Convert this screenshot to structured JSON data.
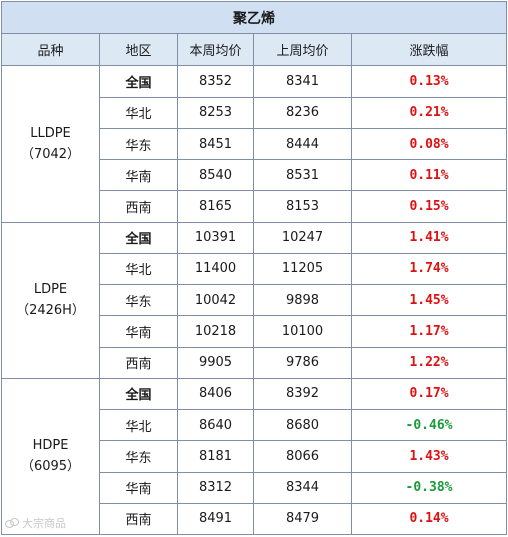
{
  "title": "聚乙烯",
  "headers": [
    "品种",
    "地区",
    "本周均价",
    "上周均价",
    "涨跌幅"
  ],
  "groups": [
    {
      "product_line1": "LLDPE",
      "product_line2": "（7042）",
      "rows": [
        {
          "region": "全国",
          "this_week": "8352",
          "last_week": "8341",
          "change": "0.13%",
          "direction": "up"
        },
        {
          "region": "华北",
          "this_week": "8253",
          "last_week": "8236",
          "change": "0.21%",
          "direction": "up"
        },
        {
          "region": "华东",
          "this_week": "8451",
          "last_week": "8444",
          "change": "0.08%",
          "direction": "up"
        },
        {
          "region": "华南",
          "this_week": "8540",
          "last_week": "8531",
          "change": "0.11%",
          "direction": "up"
        },
        {
          "region": "西南",
          "this_week": "8165",
          "last_week": "8153",
          "change": "0.15%",
          "direction": "up"
        }
      ]
    },
    {
      "product_line1": "LDPE",
      "product_line2": "（2426H）",
      "rows": [
        {
          "region": "全国",
          "this_week": "10391",
          "last_week": "10247",
          "change": "1.41%",
          "direction": "up"
        },
        {
          "region": "华北",
          "this_week": "11400",
          "last_week": "11205",
          "change": "1.74%",
          "direction": "up"
        },
        {
          "region": "华东",
          "this_week": "10042",
          "last_week": "9898",
          "change": "1.45%",
          "direction": "up"
        },
        {
          "region": "华南",
          "this_week": "10218",
          "last_week": "10100",
          "change": "1.17%",
          "direction": "up"
        },
        {
          "region": "西南",
          "this_week": "9905",
          "last_week": "9786",
          "change": "1.22%",
          "direction": "up"
        }
      ]
    },
    {
      "product_line1": "HDPE",
      "product_line2": "（6095）",
      "rows": [
        {
          "region": "全国",
          "this_week": "8406",
          "last_week": "8392",
          "change": "0.17%",
          "direction": "up"
        },
        {
          "region": "华北",
          "this_week": "8640",
          "last_week": "8680",
          "change": "-0.46%",
          "direction": "down"
        },
        {
          "region": "华东",
          "this_week": "8181",
          "last_week": "8066",
          "change": "1.43%",
          "direction": "up"
        },
        {
          "region": "华南",
          "this_week": "8312",
          "last_week": "8344",
          "change": "-0.38%",
          "direction": "down"
        },
        {
          "region": "西南",
          "this_week": "8491",
          "last_week": "8479",
          "change": "0.14%",
          "direction": "up"
        }
      ]
    }
  ],
  "colors": {
    "up": "#e01010",
    "down": "#1a9a3a",
    "header_bg": "#dde8f5",
    "title_bg": "#d0dff1"
  },
  "watermark": {
    "text": "大宗商品",
    "icon": "weibo-logo-icon"
  }
}
